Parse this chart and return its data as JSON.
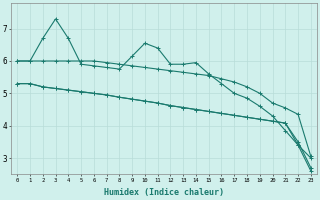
{
  "title": "",
  "xlabel": "Humidex (Indice chaleur)",
  "bg_color": "#d0f0ec",
  "grid_color": "#b8ddd8",
  "line_color": "#1a7a6e",
  "xlim": [
    -0.5,
    23.5
  ],
  "ylim": [
    2.5,
    7.8
  ],
  "yticks": [
    3,
    4,
    5,
    6,
    7
  ],
  "xticks": [
    0,
    1,
    2,
    3,
    4,
    5,
    6,
    7,
    8,
    9,
    10,
    11,
    12,
    13,
    14,
    15,
    16,
    17,
    18,
    19,
    20,
    21,
    22,
    23
  ],
  "series": [
    {
      "x": [
        0,
        1,
        2,
        3,
        4,
        5,
        6,
        7,
        8,
        9,
        10,
        11,
        12,
        13,
        14,
        15,
        16,
        17,
        18,
        19,
        20,
        21,
        22,
        23
      ],
      "y": [
        6.0,
        6.0,
        6.0,
        6.0,
        6.0,
        6.0,
        6.0,
        5.95,
        5.9,
        5.85,
        5.8,
        5.75,
        5.7,
        5.65,
        5.6,
        5.55,
        5.45,
        5.35,
        5.2,
        5.0,
        4.7,
        4.55,
        4.35,
        3.05
      ]
    },
    {
      "x": [
        0,
        1,
        2,
        3,
        4,
        5,
        6,
        7,
        8,
        9,
        10,
        11,
        12,
        13,
        14,
        15,
        16,
        17,
        18,
        19,
        20,
        21,
        22,
        23
      ],
      "y": [
        5.3,
        5.3,
        5.2,
        5.15,
        5.1,
        5.05,
        5.0,
        4.95,
        4.88,
        4.82,
        4.76,
        4.7,
        4.62,
        4.56,
        4.5,
        4.44,
        4.38,
        4.32,
        4.26,
        4.2,
        4.14,
        4.08,
        3.5,
        2.7
      ]
    },
    {
      "x": [
        0,
        1,
        2,
        3,
        4,
        5,
        6,
        7,
        8,
        9,
        10,
        11,
        12,
        13,
        14,
        15,
        16,
        17,
        18,
        19,
        20,
        21,
        22,
        23
      ],
      "y": [
        5.3,
        5.3,
        5.2,
        5.15,
        5.1,
        5.05,
        5.0,
        4.95,
        4.88,
        4.82,
        4.76,
        4.7,
        4.62,
        4.56,
        4.5,
        4.44,
        4.38,
        4.32,
        4.26,
        4.2,
        4.14,
        4.08,
        3.4,
        2.6
      ]
    },
    {
      "x": [
        0,
        1,
        2,
        3,
        4,
        5,
        6,
        7,
        8,
        9,
        10,
        11,
        12,
        13,
        14,
        15,
        16,
        17,
        18,
        19,
        20,
        21,
        22,
        23
      ],
      "y": [
        6.0,
        6.0,
        6.7,
        7.3,
        6.7,
        5.9,
        5.85,
        5.8,
        5.75,
        6.15,
        6.55,
        6.4,
        5.9,
        5.9,
        5.95,
        5.6,
        5.3,
        5.0,
        4.85,
        4.6,
        4.3,
        3.85,
        3.4,
        3.0
      ]
    }
  ]
}
